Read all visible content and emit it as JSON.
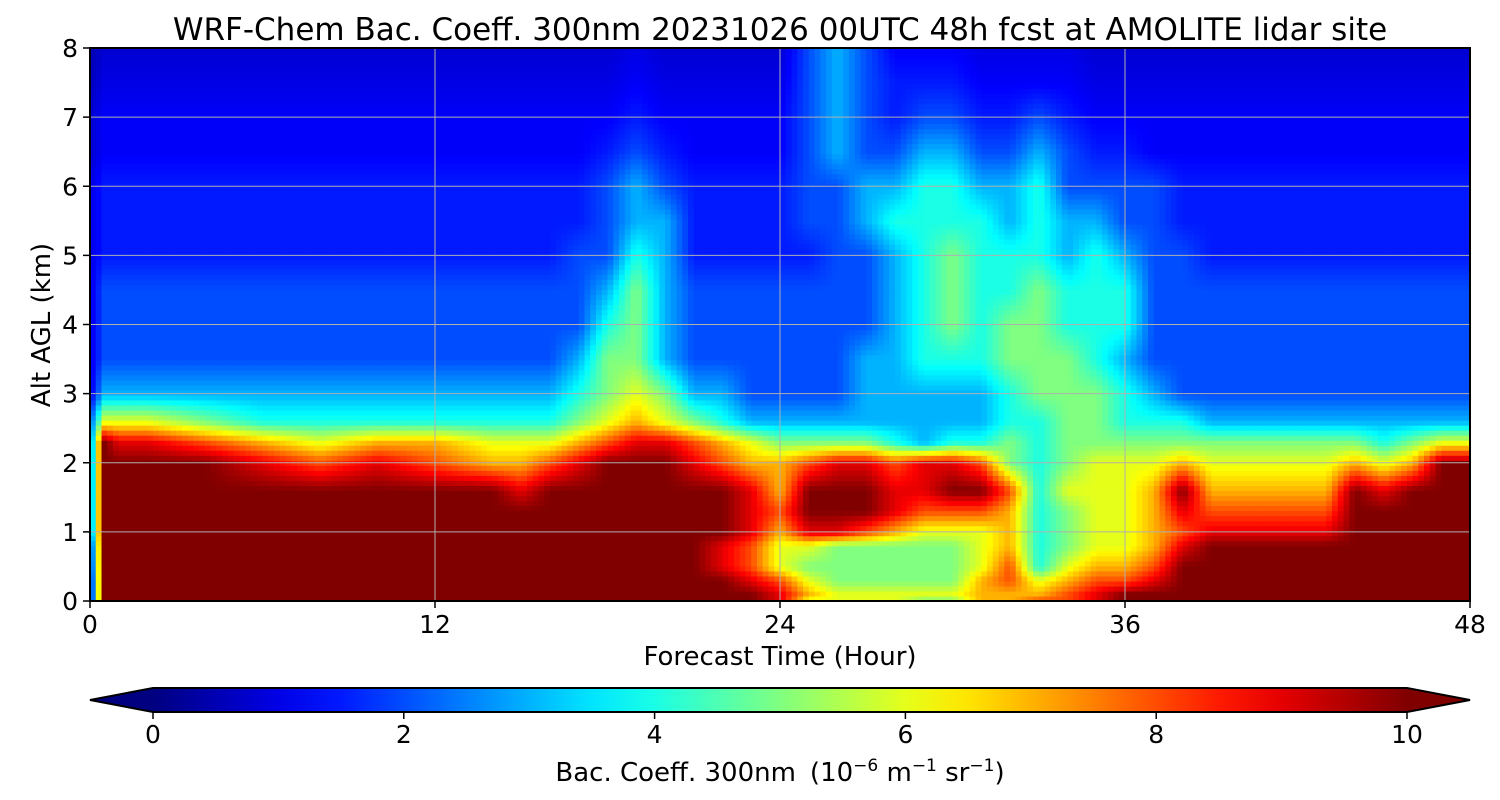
{
  "chart_data": {
    "type": "heatmap",
    "title": "WRF-Chem Bac. Coeff. 300nm  20231026 00UTC 48h fcst at AMOLITE lidar site",
    "xlabel": "Forecast Time (Hour)",
    "ylabel": "Alt AGL (km)",
    "xlim": [
      0,
      48
    ],
    "ylim": [
      0,
      8
    ],
    "xticks": [
      0,
      12,
      24,
      36,
      48
    ],
    "yticks": [
      0,
      1,
      2,
      3,
      4,
      5,
      6,
      7,
      8
    ],
    "grid": true,
    "colormap": "jet",
    "colorbar": {
      "label_main": "Bac. Coeff. 300nm",
      "label_units": "(10",
      "label_exp1": "−6",
      "label_unit_m": " m",
      "label_exp2": "−1",
      "label_unit_sr": " sr",
      "label_exp3": "−1",
      "label_close": ")",
      "range": [
        0,
        10
      ],
      "ticks": [
        0,
        2,
        4,
        6,
        8,
        10
      ],
      "extend": "both",
      "orientation": "horizontal"
    },
    "x": [
      0,
      0.5,
      1,
      2,
      4,
      6,
      8,
      10,
      12,
      14,
      15,
      16,
      17,
      18,
      19,
      20,
      21,
      22,
      23,
      24,
      25,
      26,
      27,
      28,
      29,
      30,
      31,
      32,
      33,
      34,
      35,
      36,
      37,
      38,
      39,
      40,
      41,
      42,
      43,
      44,
      45,
      46,
      47,
      48
    ],
    "y": [
      0,
      0.1,
      0.3,
      0.5,
      0.8,
      1,
      1.3,
      1.6,
      2,
      2.3,
      2.6,
      3,
      3.5,
      4,
      4.5,
      5,
      5.5,
      6,
      6.5,
      7,
      7.5,
      8
    ],
    "z": [
      [
        0.5,
        10,
        10,
        10,
        10,
        10,
        10,
        10,
        10,
        10,
        10,
        10,
        10,
        10,
        10,
        10,
        10,
        10,
        10,
        9,
        6,
        6,
        6,
        6,
        5,
        5,
        7,
        7,
        8,
        8,
        9,
        10,
        10,
        10,
        10,
        10,
        10,
        10,
        10,
        10,
        10,
        10,
        10,
        10
      ],
      [
        0.5,
        10,
        10,
        10,
        10,
        10,
        10,
        10,
        10,
        10,
        10,
        10,
        10,
        10,
        10,
        10,
        10,
        10,
        10,
        9,
        7,
        6,
        6,
        6,
        6,
        6,
        7,
        7,
        7,
        8,
        9,
        10,
        10,
        10,
        10,
        10,
        10,
        10,
        10,
        10,
        10,
        10,
        10,
        10
      ],
      [
        0.5,
        10,
        10,
        10,
        10,
        10,
        10,
        10,
        10,
        10,
        10,
        10,
        10,
        10,
        10,
        10,
        10,
        10,
        9,
        8,
        6,
        5,
        5,
        5,
        5,
        5,
        7,
        8,
        6,
        7,
        8,
        8,
        9,
        10,
        10,
        10,
        10,
        10,
        10,
        10,
        10,
        10,
        10,
        10
      ],
      [
        0.8,
        10,
        10,
        10,
        10,
        10,
        10,
        10,
        10,
        10,
        10,
        10,
        10,
        10,
        10,
        10,
        10,
        9,
        8,
        6,
        5,
        5,
        5,
        5,
        5,
        5,
        6,
        8,
        4,
        6,
        7,
        7,
        8,
        10,
        10,
        10,
        10,
        10,
        10,
        10,
        10,
        10,
        10,
        10
      ],
      [
        1,
        10,
        10,
        10,
        10,
        10,
        10,
        10,
        10,
        10,
        10,
        10,
        10,
        10,
        10,
        10,
        10,
        9,
        8,
        6,
        6,
        5,
        5,
        5,
        5,
        5,
        6,
        7,
        4,
        5,
        6,
        6,
        7,
        9,
        10,
        10,
        10,
        10,
        10,
        10,
        10,
        10,
        10,
        10
      ],
      [
        2,
        10,
        10,
        10,
        10,
        10,
        10,
        10,
        10,
        10,
        10,
        10,
        10,
        10,
        10,
        10,
        10,
        10,
        9,
        7,
        9,
        9,
        8,
        7,
        6,
        6,
        6,
        7,
        4,
        5,
        6,
        6,
        7,
        8,
        9,
        9,
        9,
        9,
        9,
        10,
        10,
        10,
        10,
        10
      ],
      [
        2,
        10,
        10,
        10,
        10,
        10,
        10,
        10,
        10,
        10,
        10,
        10,
        10,
        10,
        10,
        10,
        10,
        10,
        9,
        8,
        10,
        10,
        10,
        9,
        8,
        8,
        8,
        7,
        4,
        5,
        6,
        6,
        7,
        9,
        8,
        8,
        8,
        8,
        8,
        10,
        10,
        10,
        10,
        10
      ],
      [
        2,
        10,
        10,
        10,
        10,
        10,
        10,
        10,
        10,
        10,
        9,
        10,
        10,
        10,
        10,
        10,
        10,
        10,
        9,
        7,
        10,
        10,
        10,
        9,
        9,
        10,
        10,
        8,
        4,
        6,
        6,
        6,
        7,
        10,
        7,
        7,
        7,
        7,
        7,
        10,
        9,
        10,
        10,
        10
      ],
      [
        2,
        10,
        10,
        10,
        10,
        9,
        8,
        9,
        8,
        7,
        7,
        8,
        9,
        10,
        10,
        10,
        9,
        8,
        7,
        7,
        8,
        9,
        9,
        8,
        9,
        9,
        8,
        5,
        4,
        5,
        6,
        6,
        6,
        7,
        6,
        6,
        6,
        6,
        6,
        7,
        6,
        7,
        10,
        10
      ],
      [
        2,
        10,
        9,
        9,
        8,
        7,
        6,
        7,
        7,
        6,
        6,
        6,
        7,
        8,
        9,
        9,
        8,
        7,
        6,
        5,
        5,
        5,
        5,
        4,
        3,
        4,
        4,
        5,
        4,
        5,
        5,
        5,
        5,
        5,
        5,
        5,
        5,
        5,
        5,
        5,
        4,
        5,
        6,
        6
      ],
      [
        2,
        6,
        6,
        6,
        5,
        4,
        4,
        4,
        4,
        4,
        4,
        4,
        5,
        6,
        7,
        6,
        5,
        4,
        3,
        3,
        3,
        3,
        3,
        3,
        3,
        3,
        3,
        4,
        4,
        5,
        5,
        4,
        4,
        4,
        3,
        3,
        3,
        3,
        3,
        3,
        3,
        3,
        3,
        3
      ],
      [
        1,
        3,
        3,
        3,
        3,
        3,
        3,
        3,
        3,
        3,
        3,
        3,
        4,
        5,
        6,
        5,
        3,
        3,
        2,
        2,
        2,
        2,
        3,
        3,
        3,
        3,
        3,
        4,
        5,
        5,
        5,
        4,
        3,
        2,
        2,
        2,
        2,
        2,
        2,
        2,
        2,
        2,
        2,
        2
      ],
      [
        1,
        2,
        2,
        2,
        2,
        2,
        2,
        2,
        2,
        2,
        2,
        2,
        3,
        5,
        5,
        3,
        2,
        2,
        2,
        2,
        2,
        2,
        3,
        3,
        4,
        4,
        4,
        5,
        5,
        5,
        4,
        3,
        2,
        2,
        2,
        2,
        2,
        2,
        2,
        2,
        2,
        2,
        2,
        2
      ],
      [
        1,
        2,
        2,
        2,
        2,
        2,
        2,
        2,
        2,
        2,
        2,
        2,
        2,
        4,
        5,
        3,
        2,
        2,
        2,
        2,
        2,
        2,
        2,
        3,
        4,
        5,
        4,
        5,
        5,
        4,
        4,
        4,
        2,
        2,
        2,
        2,
        2,
        2,
        2,
        2,
        2,
        2,
        2,
        2
      ],
      [
        1,
        2,
        2,
        2,
        2,
        2,
        2,
        2,
        2,
        2,
        2,
        2,
        2,
        3,
        5,
        3,
        2,
        2,
        2,
        2,
        2,
        2,
        2,
        3,
        4,
        5,
        4,
        4,
        5,
        4,
        4,
        4,
        2,
        2,
        2,
        2,
        2,
        2,
        2,
        2,
        2,
        2,
        2,
        2
      ],
      [
        1,
        1.5,
        1.5,
        1.5,
        1.5,
        1.5,
        1.5,
        1.5,
        1.5,
        1.5,
        1.5,
        1.5,
        2,
        2,
        4,
        3,
        1.5,
        1.5,
        1.5,
        1.5,
        1.5,
        2,
        2,
        3,
        4,
        5,
        4,
        4,
        4,
        3,
        4,
        3,
        2,
        2,
        1.5,
        1.5,
        1.5,
        1.5,
        1.5,
        1.5,
        1.5,
        1.5,
        1.5,
        1.5
      ],
      [
        1,
        1.5,
        1.5,
        1.5,
        1.5,
        1.5,
        1.5,
        1.5,
        1.5,
        1.5,
        1.5,
        1.5,
        1.5,
        2,
        3,
        3,
        1.5,
        1.5,
        1.5,
        1.5,
        2,
        2,
        3,
        4,
        4,
        4,
        4,
        3,
        4,
        3,
        3,
        2,
        2,
        1.5,
        1.5,
        1.5,
        1.5,
        1.5,
        1.5,
        1.5,
        1.5,
        1.5,
        1.5,
        1.5
      ],
      [
        1,
        1.5,
        1.5,
        1.5,
        1.5,
        1.5,
        1.5,
        1.5,
        1.5,
        1.5,
        1.5,
        1.5,
        1.5,
        2,
        3,
        2,
        1.5,
        1.5,
        1.5,
        1.5,
        2,
        2,
        3,
        3,
        4,
        4,
        3,
        3,
        4,
        2,
        2,
        2,
        2,
        1.5,
        1.5,
        1.5,
        1.5,
        1.5,
        1.5,
        1.5,
        1.5,
        1.5,
        1.5,
        1.5
      ],
      [
        0.8,
        1.2,
        1.2,
        1.2,
        1.2,
        1.2,
        1.2,
        1.2,
        1.2,
        1.2,
        1.2,
        1.2,
        1.2,
        1.5,
        2,
        1.5,
        1.2,
        1.2,
        1.2,
        1.2,
        2,
        3,
        2,
        2,
        3,
        3,
        2,
        2,
        3,
        2,
        1.5,
        1.5,
        1.2,
        1.2,
        1.2,
        1.2,
        1.2,
        1.2,
        1.2,
        1.2,
        1.2,
        1.2,
        1.2,
        1.2
      ],
      [
        0.8,
        1.2,
        1.2,
        1.2,
        1.2,
        1.2,
        1.2,
        1.2,
        1.2,
        1.2,
        1.2,
        1.2,
        1.2,
        1.2,
        1.5,
        1.2,
        1.2,
        1.2,
        1.2,
        1.2,
        2,
        3,
        2,
        1.5,
        2,
        2,
        1.5,
        1.5,
        2,
        1.5,
        1.2,
        1.2,
        1.2,
        1.2,
        1.2,
        1.2,
        1.2,
        1.2,
        1.2,
        1.2,
        1.2,
        1.2,
        1.2,
        1.2
      ],
      [
        0.6,
        1,
        1,
        1,
        1,
        1,
        1,
        1,
        1,
        1,
        1,
        1,
        1,
        1,
        1.2,
        1,
        1,
        1,
        1,
        1,
        2,
        3,
        2,
        1.5,
        1.5,
        1.5,
        1.2,
        1.2,
        1.2,
        1.2,
        1,
        1,
        1,
        1,
        1,
        1,
        1,
        1,
        1,
        1,
        1,
        1,
        1,
        1
      ],
      [
        0.5,
        0.8,
        0.8,
        0.8,
        0.8,
        0.8,
        0.8,
        0.8,
        0.8,
        0.8,
        0.8,
        0.8,
        0.8,
        0.8,
        1,
        0.8,
        0.8,
        0.8,
        0.8,
        0.8,
        2,
        3,
        2,
        1.2,
        1.2,
        1.2,
        1,
        1,
        1,
        1,
        0.8,
        0.8,
        0.8,
        0.8,
        0.8,
        0.8,
        0.8,
        0.8,
        0.8,
        0.8,
        0.8,
        0.8,
        0.8,
        0.8
      ]
    ]
  }
}
